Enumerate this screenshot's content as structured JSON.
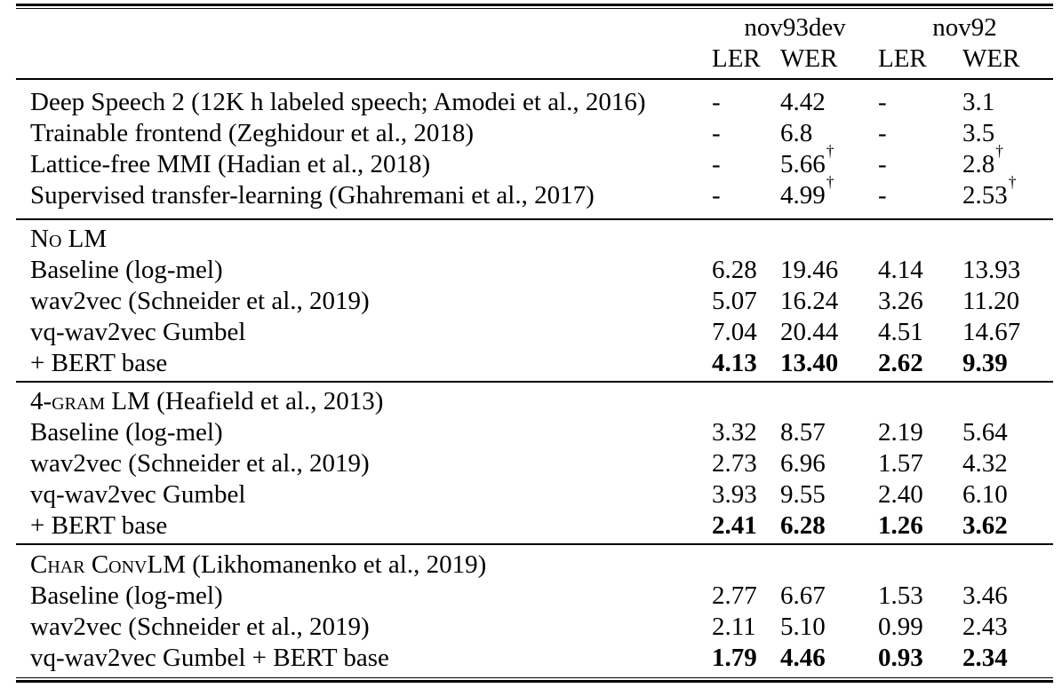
{
  "colors": {
    "text": "#000000",
    "rule": "#000000",
    "background": "#ffffff"
  },
  "table": {
    "col_groups": [
      {
        "label": "nov93dev"
      },
      {
        "label": "nov92"
      }
    ],
    "col_headers": [
      "LER",
      "WER",
      "LER",
      "WER"
    ],
    "sections": [
      {
        "rows": [
          {
            "label": "Deep Speech 2 (12K h labeled speech; Amodei et al., 2016)",
            "values": [
              {
                "v": "-"
              },
              {
                "v": "4.42"
              },
              {
                "v": "-"
              },
              {
                "v": "3.1"
              }
            ]
          },
          {
            "label": "Trainable frontend (Zeghidour et al., 2018)",
            "values": [
              {
                "v": "-"
              },
              {
                "v": "6.8"
              },
              {
                "v": "-"
              },
              {
                "v": "3.5"
              }
            ]
          },
          {
            "label": "Lattice-free MMI (Hadian et al., 2018)",
            "values": [
              {
                "v": "-"
              },
              {
                "v": "5.66",
                "sup": "†"
              },
              {
                "v": "-"
              },
              {
                "v": "2.8",
                "sup": "†"
              }
            ]
          },
          {
            "label": "Supervised transfer-learning (Ghahremani et al., 2017)",
            "values": [
              {
                "v": "-"
              },
              {
                "v": "4.99",
                "sup": "†"
              },
              {
                "v": "-"
              },
              {
                "v": "2.53",
                "sup": "†"
              }
            ]
          }
        ]
      },
      {
        "rows": [
          {
            "sc": "No LM",
            "values": []
          },
          {
            "label": "Baseline (log-mel)",
            "values": [
              {
                "v": "6.28"
              },
              {
                "v": "19.46"
              },
              {
                "v": "4.14"
              },
              {
                "v": "13.93"
              }
            ]
          },
          {
            "label": "wav2vec (Schneider et al., 2019)",
            "values": [
              {
                "v": "5.07"
              },
              {
                "v": "16.24"
              },
              {
                "v": "3.26"
              },
              {
                "v": "11.20"
              }
            ]
          },
          {
            "label": "vq-wav2vec Gumbel",
            "values": [
              {
                "v": "7.04"
              },
              {
                "v": "20.44"
              },
              {
                "v": "4.51"
              },
              {
                "v": "14.67"
              }
            ]
          },
          {
            "label": "+ BERT base",
            "bold": true,
            "values": [
              {
                "v": "4.13"
              },
              {
                "v": "13.40"
              },
              {
                "v": "2.62"
              },
              {
                "v": "9.39"
              }
            ]
          }
        ]
      },
      {
        "rows": [
          {
            "sc": "4-gram LM",
            "label": " (Heafield et al., 2013)",
            "values": []
          },
          {
            "label": "Baseline (log-mel)",
            "values": [
              {
                "v": "3.32"
              },
              {
                "v": "8.57"
              },
              {
                "v": "2.19"
              },
              {
                "v": "5.64"
              }
            ]
          },
          {
            "label": "wav2vec (Schneider et al., 2019)",
            "values": [
              {
                "v": "2.73"
              },
              {
                "v": "6.96"
              },
              {
                "v": "1.57"
              },
              {
                "v": "4.32"
              }
            ]
          },
          {
            "label": "vq-wav2vec Gumbel",
            "values": [
              {
                "v": "3.93"
              },
              {
                "v": "9.55"
              },
              {
                "v": "2.40"
              },
              {
                "v": "6.10"
              }
            ]
          },
          {
            "label": "+ BERT base",
            "bold": true,
            "values": [
              {
                "v": "2.41"
              },
              {
                "v": "6.28"
              },
              {
                "v": "1.26"
              },
              {
                "v": "3.62"
              }
            ]
          }
        ]
      },
      {
        "rows": [
          {
            "sc": "Char ConvLM",
            "label": " (Likhomanenko et al., 2019)",
            "values": []
          },
          {
            "label": "Baseline (log-mel)",
            "values": [
              {
                "v": "2.77"
              },
              {
                "v": "6.67"
              },
              {
                "v": "1.53"
              },
              {
                "v": "3.46"
              }
            ]
          },
          {
            "label": "wav2vec (Schneider et al., 2019)",
            "values": [
              {
                "v": "2.11"
              },
              {
                "v": "5.10"
              },
              {
                "v": "0.99"
              },
              {
                "v": "2.43"
              }
            ]
          },
          {
            "label": "vq-wav2vec Gumbel + BERT base",
            "bold": true,
            "values": [
              {
                "v": "1.79"
              },
              {
                "v": "4.46"
              },
              {
                "v": "0.93"
              },
              {
                "v": "2.34"
              }
            ]
          }
        ]
      }
    ]
  }
}
